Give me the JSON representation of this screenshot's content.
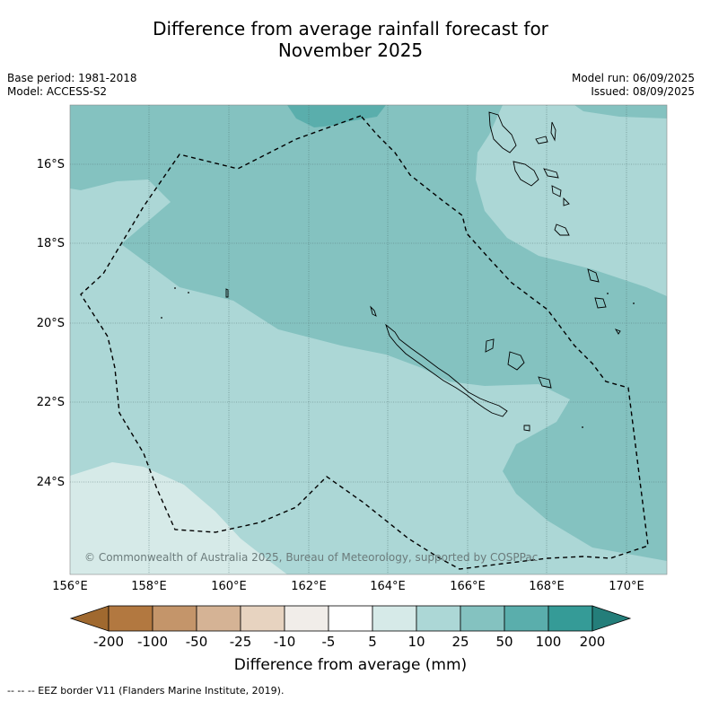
{
  "header": {
    "title_line1": "Difference from average rainfall forecast for",
    "title_line2": "November 2025",
    "base_period": "Base period: 1981-2018",
    "model": "Model: ACCESS-S2",
    "model_run": "Model run: 06/09/2025",
    "issued": "Issued: 08/09/2025"
  },
  "map": {
    "latitude_labels": [
      "16°S",
      "18°S",
      "20°S",
      "22°S",
      "24°S"
    ],
    "longitude_labels": [
      "156°E",
      "158°E",
      "160°E",
      "162°E",
      "164°E",
      "166°E",
      "168°E",
      "170°E"
    ],
    "copyright": "© Commonwealth of Australia 2025, Bureau of Meteorology, supported by COSPPac",
    "colors": {
      "band_5_10": "#d6eae8",
      "band_10_25": "#acd7d6",
      "band_25_50": "#84c2c0",
      "band_50_100": "#5aaeac",
      "land_outline": "#000000"
    }
  },
  "colorbar": {
    "labels": [
      "-200",
      "-100",
      "-50",
      "-25",
      "-10",
      "-5",
      "5",
      "10",
      "25",
      "50",
      "100",
      "200"
    ],
    "colors": [
      "#a0692f",
      "#b27840",
      "#c4956a",
      "#d5b395",
      "#e7d3c0",
      "#f1ede9",
      "#ffffff",
      "#d6eae8",
      "#acd7d6",
      "#84c2c0",
      "#5aaeac",
      "#359b97",
      "#247e7a"
    ],
    "title": "Difference from average (mm)"
  },
  "footnote": "--  --  -- EEZ border V11 (Flanders Marine Institute, 2019)."
}
